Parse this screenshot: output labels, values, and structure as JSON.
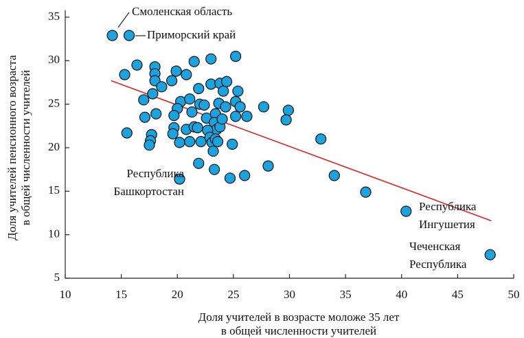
{
  "chart_data": {
    "type": "scatter",
    "x_label": [
      "Доля учителей в возрасте моложе 35 лет",
      "в общей численности учителей"
    ],
    "y_label": [
      "Доля учителей пенсионного возраста",
      "в общей численности учителей"
    ],
    "xlim": [
      10,
      50
    ],
    "xticks": [
      10,
      15,
      20,
      25,
      30,
      35,
      40,
      45,
      50
    ],
    "ylim": [
      5,
      35
    ],
    "yticks": [
      5,
      10,
      15,
      20,
      25,
      30,
      35
    ],
    "color": "#1aa3df",
    "trend_color": "#e02020",
    "series": [
      {
        "x": [
          14.2,
          15.7,
          15.3,
          16.4,
          15.5,
          18.0,
          18.0,
          18.0,
          18.6,
          17.8,
          17.0,
          18.1,
          17.1,
          17.7,
          17.6,
          17.5,
          19.5,
          19.9,
          20.8,
          21.5,
          23.0,
          25.2,
          20.3,
          20.0,
          19.7,
          19.7,
          19.6,
          20.2,
          21.1,
          21.3,
          21.9,
          22.0,
          22.4,
          22.6,
          20.8,
          21.5,
          21.8,
          21.1,
          22.1,
          21.9,
          20.2,
          23.0,
          23.8,
          24.4,
          24.1,
          23.7,
          24.3,
          23.4,
          23.3,
          23.5,
          23.8,
          24.0,
          22.7,
          22.9,
          23.1,
          23.4,
          23.6,
          23.2,
          23.3,
          24.9,
          24.7,
          26.0,
          25.4,
          25.2,
          25.6,
          25.2,
          26.2,
          27.7,
          28.1,
          29.9,
          29.7,
          32.8,
          34.0,
          36.8,
          40.4,
          47.9
        ],
        "values": [
          32.9,
          32.9,
          28.4,
          29.5,
          21.7,
          29.3,
          28.5,
          27.7,
          27.0,
          26.2,
          25.5,
          23.9,
          23.5,
          21.5,
          20.8,
          20.3,
          27.7,
          28.8,
          28.4,
          29.9,
          30.2,
          30.5,
          25.3,
          24.5,
          23.7,
          22.3,
          21.6,
          20.6,
          25.6,
          24.1,
          26.8,
          25.0,
          24.9,
          23.4,
          22.1,
          22.4,
          22.3,
          20.7,
          20.7,
          18.2,
          16.4,
          27.3,
          27.4,
          27.6,
          26.5,
          25.1,
          24.7,
          23.9,
          22.9,
          22.1,
          22.4,
          23.3,
          22.0,
          21.2,
          20.6,
          21.0,
          20.7,
          19.6,
          17.5,
          20.4,
          16.5,
          16.8,
          26.5,
          25.3,
          24.7,
          23.6,
          23.6,
          24.7,
          17.9,
          24.3,
          23.2,
          21.0,
          16.8,
          14.9,
          12.7,
          7.7
        ]
      }
    ],
    "trend": {
      "x": [
        14.1,
        48.0
      ],
      "values": [
        27.7,
        11.6
      ]
    },
    "annotations": [
      {
        "text": [
          "Смоленская область"
        ]
      },
      {
        "text": [
          "Приморский край"
        ]
      },
      {
        "text": [
          "Республика",
          "Башкортостан"
        ]
      },
      {
        "text": [
          "Республика",
          "Ингушетия"
        ]
      },
      {
        "text": [
          "Чеченская",
          "Республика"
        ]
      }
    ]
  }
}
